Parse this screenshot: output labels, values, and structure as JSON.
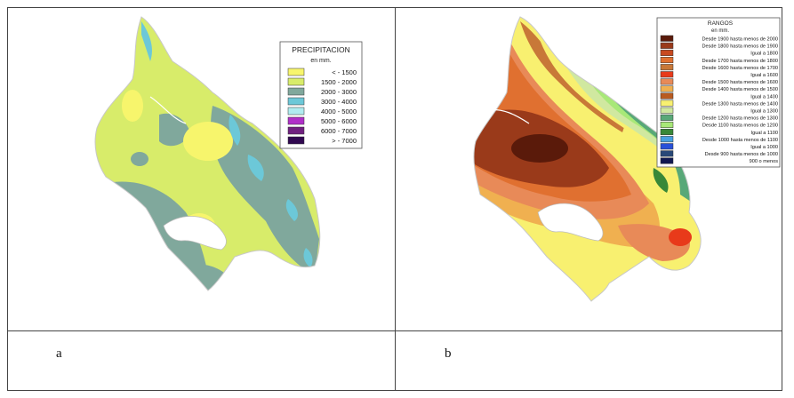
{
  "captions": {
    "a": "a",
    "b": "b"
  },
  "map_a": {
    "legend_title": "PRECIPITACION",
    "legend_unit": "en mm.",
    "classes": [
      {
        "label": "< - 1500",
        "color": "#f7f56c"
      },
      {
        "label": "1500 - 2000",
        "color": "#d8ec6a"
      },
      {
        "label": "2000 - 3000",
        "color": "#80a89c"
      },
      {
        "label": "3000 - 4000",
        "color": "#6cc8d8"
      },
      {
        "label": "4000 - 5000",
        "color": "#b0ecf0"
      },
      {
        "label": "5000 - 6000",
        "color": "#b030c8"
      },
      {
        "label": "6000 - 7000",
        "color": "#702080"
      },
      {
        "label": "> - 7000",
        "color": "#300850"
      }
    ]
  },
  "map_b": {
    "legend_title": "RANGOS",
    "legend_unit": "en mm.",
    "classes": [
      {
        "label": "Desde 1900 hasta menos de 2000",
        "color": "#5a1a0a"
      },
      {
        "label": "Desde 1800 hasta menos de 1900",
        "color": "#9a3a1a"
      },
      {
        "label": "Igual a 1800",
        "color": "#c84a20"
      },
      {
        "label": "Desde 1700 hasta menos de 1800",
        "color": "#e07030"
      },
      {
        "label": "Desde 1600 hasta menos de 1700",
        "color": "#c87838"
      },
      {
        "label": "Igual a 1600",
        "color": "#e83a1a"
      },
      {
        "label": "Desde 1500 hasta menos de 1600",
        "color": "#e88a58"
      },
      {
        "label": "Desde 1400 hasta menos de 1500",
        "color": "#f0b050"
      },
      {
        "label": "Igual a 1400",
        "color": "#b85a20"
      },
      {
        "label": "Desde 1300 hasta menos de 1400",
        "color": "#f8f070"
      },
      {
        "label": "Igual a 1300",
        "color": "#d0e8a0"
      },
      {
        "label": "Desde 1200 hasta menos de 1300",
        "color": "#58a878"
      },
      {
        "label": "Desde 1100 hasta menos de 1200",
        "color": "#a8e878"
      },
      {
        "label": "Igual a 1100",
        "color": "#388838"
      },
      {
        "label": "Desde 1000 hasta menos de 1100",
        "color": "#48a0e0"
      },
      {
        "label": "Igual a 1000",
        "color": "#2850d8"
      },
      {
        "label": "Desde 900 hasta menos de 1000",
        "color": "#284878"
      },
      {
        "label": "900 o menos",
        "color": "#101850"
      }
    ]
  }
}
